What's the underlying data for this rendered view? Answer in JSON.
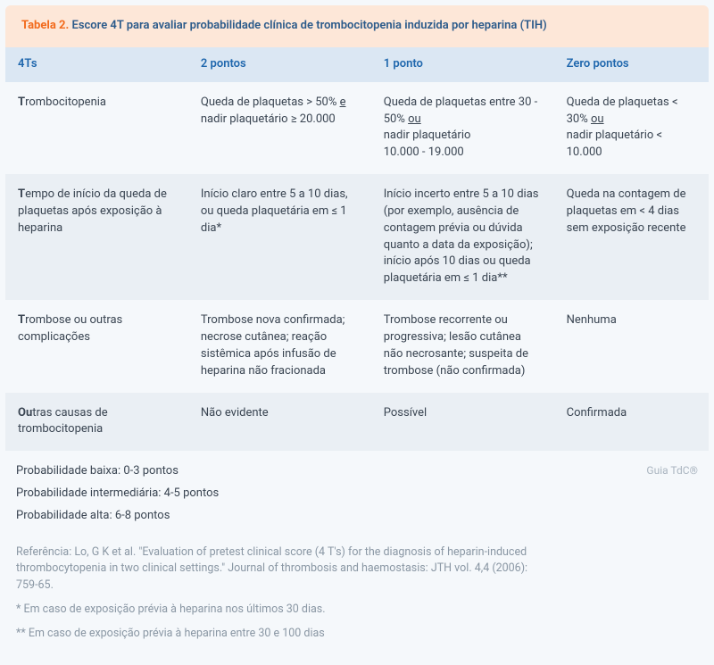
{
  "colors": {
    "title_bg": "#fde7d8",
    "title_label": "#f26b1d",
    "title_text": "#2b5a8a",
    "header_bg": "#dbe7f3",
    "header_text": "#1f67ad",
    "row_alt_bg": "#eaeff4",
    "body_text": "#3a4552",
    "ref_text": "#8a97a4",
    "watermark": "#aab5c0",
    "page_bg": "#f5f8fb"
  },
  "title": {
    "label": "Tabela 2.",
    "text": "Escore 4T para avaliar probabilidade clínica de trombocitopenia induzida por heparina (TIH)"
  },
  "columns": [
    "4Ts",
    "2 pontos",
    "1 ponto",
    "Zero pontos"
  ],
  "rows": [
    {
      "t_letter": "T",
      "t_rest": "rombocitopenia",
      "c2_pre": "Queda de plaquetas > 50% ",
      "c2_u": "e",
      "c2_post": " nadir plaquetário ≥ 20.000",
      "c3_pre": "Queda de plaquetas entre 30 - 50% ",
      "c3_u": "ou",
      "c3_post1": "nadir plaquetário",
      "c3_post2": "10.000 - 19.000",
      "c4_pre": "Queda de plaquetas < 30% ",
      "c4_u": "ou",
      "c4_post": "nadir plaquetário < 10.000"
    },
    {
      "t_letter": "T",
      "t_rest": "empo de início da queda de plaquetas após exposição à heparina",
      "c2": "Início claro entre 5 a 10 dias, ou queda plaquetária em ≤ 1 dia*",
      "c3a": "Início incerto entre 5 a 10 dias (por exemplo, ausência de contagem prévia ou dúvida quanto a data da exposição);",
      "c3b": "início após 10 dias ou queda plaquetária em ≤ 1 dia**",
      "c4": "Queda na contagem de plaquetas em < 4 dias sem exposição recente"
    },
    {
      "t_letter": "T",
      "t_rest": "rombose ou outras complicações",
      "c2": "Trombose nova confirmada; necrose cutânea; reação sistêmica após infusão de heparina não fracionada",
      "c3": "Trombose recorrente ou progressiva; lesão cutânea não necrosante; suspeita de trombose (não confirmada)",
      "c4": "Nenhuma"
    },
    {
      "t_letter": "Ou",
      "t_rest": "tras causas de trombocitopenia",
      "c2": "Não evidente",
      "c3": "Possível",
      "c4": "Confirmada"
    }
  ],
  "probability": {
    "low": "Probabilidade baixa: 0-3 pontos",
    "mid": "Probabilidade intermediária: 4-5 pontos",
    "high": "Probabilidade alta: 6-8 pontos"
  },
  "watermark": "Guia TdC®",
  "reference": "Referência: Lo, G K et al. \"Evaluation of pretest clinical score (4 T's) for the diagnosis of heparin-induced thrombocytopenia in two clinical settings.\" Journal of thrombosis and haemostasis: JTH vol. 4,4 (2006): 759-65.",
  "footnote1": "* Em caso de exposição prévia à heparina nos últimos 30 dias.",
  "footnote2": "** Em caso de exposição prévia à heparina entre 30 e 100 dias"
}
